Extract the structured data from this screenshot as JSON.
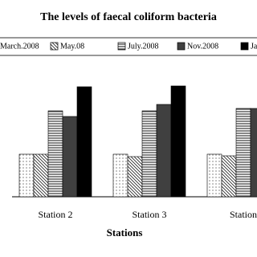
{
  "chart_data": {
    "type": "bar",
    "title": "The levels of faecal coliform bacteria",
    "x_label": "Stations",
    "categories": [
      "Station 2",
      "Station 3",
      "Station"
    ],
    "ylim": [
      0,
      150
    ],
    "series": [
      {
        "name": "March.2008",
        "pattern": "dots",
        "color": "#ffffff",
        "values": [
          53,
          53,
          53
        ]
      },
      {
        "name": "May.08",
        "pattern": "diag",
        "color": "#ffffff",
        "values": [
          53,
          50,
          51
        ]
      },
      {
        "name": "July.2008",
        "pattern": "hlines",
        "color": "#ffffff",
        "values": [
          107,
          107,
          110
        ]
      },
      {
        "name": "Nov.2008",
        "pattern": "solid",
        "color": "#404040",
        "values": [
          100,
          115,
          110
        ]
      },
      {
        "name": "Ja",
        "pattern": "solid",
        "color": "#000000",
        "values": [
          137,
          138,
          null
        ]
      }
    ]
  }
}
